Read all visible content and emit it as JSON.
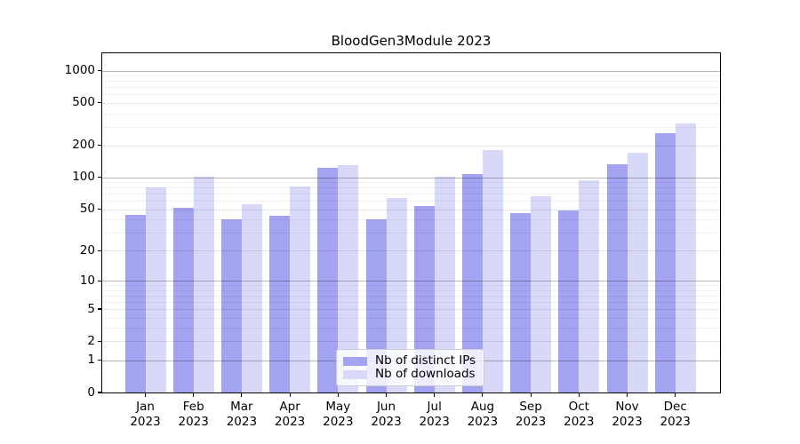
{
  "title": "BloodGen3Module 2023",
  "chart_data": {
    "type": "bar",
    "title": "BloodGen3Module 2023",
    "categories": [
      "Jan",
      "Feb",
      "Mar",
      "Apr",
      "May",
      "Jun",
      "Jul",
      "Aug",
      "Sep",
      "Oct",
      "Nov",
      "Dec"
    ],
    "category_year": "2023",
    "series": [
      {
        "name": "Nb of distinct IPs",
        "color": "#a3a3f2",
        "values": [
          44,
          52,
          40,
          43,
          124,
          40,
          54,
          108,
          46,
          49,
          134,
          260
        ]
      },
      {
        "name": "Nb of downloads",
        "color": "#d8d8f9",
        "values": [
          80,
          102,
          56,
          83,
          131,
          64,
          101,
          182,
          67,
          95,
          172,
          324
        ]
      }
    ],
    "yscale": "log1p",
    "yticks": [
      0,
      1,
      2,
      5,
      10,
      20,
      50,
      100,
      200,
      500,
      1000
    ],
    "yticks_minor": [
      3,
      4,
      6,
      7,
      8,
      9,
      30,
      40,
      60,
      70,
      80,
      90,
      300,
      400,
      600,
      700,
      800,
      900
    ],
    "ylim": [
      0,
      1450
    ],
    "grid": true,
    "legend_position": "lower center",
    "grid_major_color": "rgba(0,0,0,0.28)",
    "grid_mid_color": "rgba(0,0,0,0.10)",
    "grid_minor_color": "rgba(0,0,0,0.055)"
  },
  "legend": {
    "item1": "Nb of distinct IPs",
    "item2": "Nb of downloads"
  }
}
